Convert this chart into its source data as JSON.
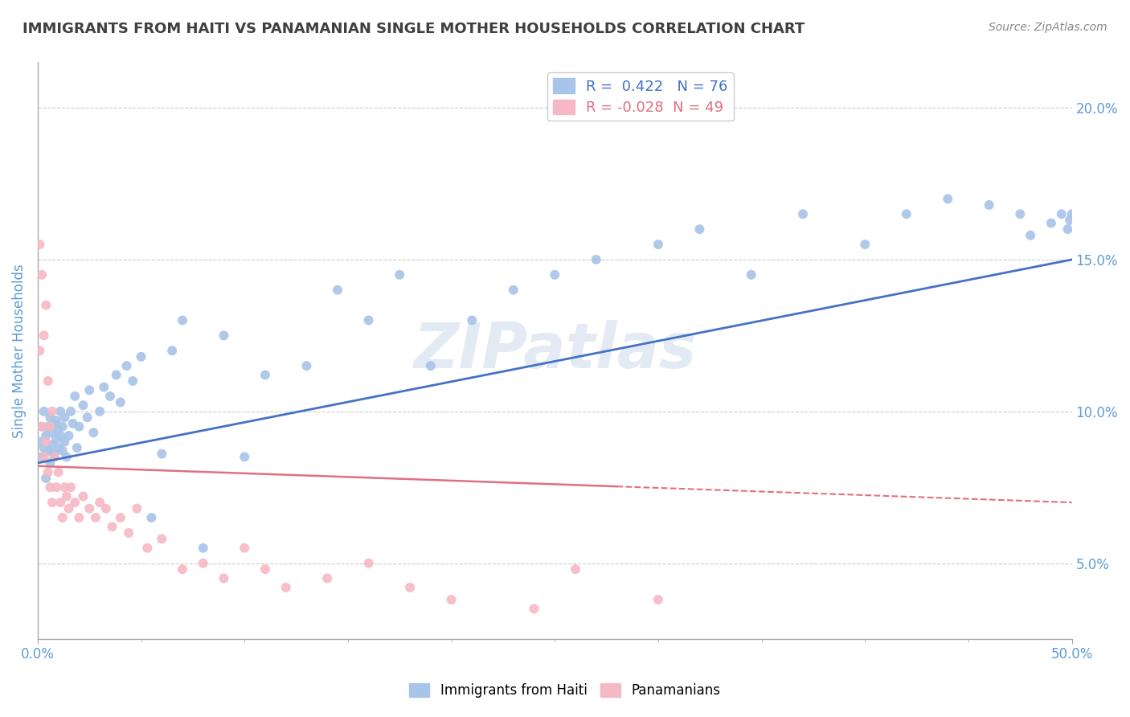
{
  "title": "IMMIGRANTS FROM HAITI VS PANAMANIAN SINGLE MOTHER HOUSEHOLDS CORRELATION CHART",
  "source": "Source: ZipAtlas.com",
  "xlabel_label": "Immigrants from Haiti",
  "xlabel_label2": "Panamanians",
  "ylabel": "Single Mother Households",
  "x_min": 0.0,
  "x_max": 0.5,
  "y_min": 0.025,
  "y_max": 0.215,
  "x_ticks": [
    0.0,
    0.5
  ],
  "x_tick_labels": [
    "0.0%",
    "50.0%"
  ],
  "y_ticks": [
    0.05,
    0.1,
    0.15,
    0.2
  ],
  "y_tick_labels": [
    "5.0%",
    "10.0%",
    "15.0%",
    "20.0%"
  ],
  "haiti_R": 0.422,
  "haiti_N": 76,
  "panama_R": -0.028,
  "panama_N": 49,
  "haiti_color": "#a8c4e8",
  "panama_color": "#f5b8c4",
  "haiti_line_color": "#4472c4",
  "panama_line_color": "#e07080",
  "background_color": "#ffffff",
  "grid_color": "#cccccc",
  "title_color": "#404040",
  "axis_label_color": "#5b9bd5",
  "tick_label_color": "#5b9bd5",
  "haiti_x": [
    0.001,
    0.002,
    0.002,
    0.003,
    0.003,
    0.004,
    0.004,
    0.005,
    0.005,
    0.006,
    0.006,
    0.007,
    0.007,
    0.008,
    0.008,
    0.009,
    0.009,
    0.01,
    0.01,
    0.011,
    0.011,
    0.012,
    0.012,
    0.013,
    0.013,
    0.014,
    0.015,
    0.016,
    0.017,
    0.018,
    0.019,
    0.02,
    0.022,
    0.024,
    0.025,
    0.027,
    0.03,
    0.032,
    0.035,
    0.038,
    0.04,
    0.043,
    0.046,
    0.05,
    0.055,
    0.06,
    0.065,
    0.07,
    0.08,
    0.09,
    0.1,
    0.11,
    0.13,
    0.145,
    0.16,
    0.175,
    0.19,
    0.21,
    0.23,
    0.25,
    0.27,
    0.3,
    0.32,
    0.345,
    0.37,
    0.4,
    0.42,
    0.44,
    0.46,
    0.475,
    0.48,
    0.49,
    0.495,
    0.498,
    0.499,
    0.5
  ],
  "haiti_y": [
    0.09,
    0.095,
    0.085,
    0.1,
    0.088,
    0.092,
    0.078,
    0.087,
    0.095,
    0.083,
    0.098,
    0.089,
    0.093,
    0.096,
    0.086,
    0.091,
    0.097,
    0.094,
    0.088,
    0.092,
    0.1,
    0.087,
    0.095,
    0.09,
    0.098,
    0.085,
    0.092,
    0.1,
    0.096,
    0.105,
    0.088,
    0.095,
    0.102,
    0.098,
    0.107,
    0.093,
    0.1,
    0.108,
    0.105,
    0.112,
    0.103,
    0.115,
    0.11,
    0.118,
    0.065,
    0.086,
    0.12,
    0.13,
    0.055,
    0.125,
    0.085,
    0.112,
    0.115,
    0.14,
    0.13,
    0.145,
    0.115,
    0.13,
    0.14,
    0.145,
    0.15,
    0.155,
    0.16,
    0.145,
    0.165,
    0.155,
    0.165,
    0.17,
    0.168,
    0.165,
    0.158,
    0.162,
    0.165,
    0.16,
    0.163,
    0.165
  ],
  "panama_x": [
    0.001,
    0.001,
    0.002,
    0.002,
    0.003,
    0.003,
    0.004,
    0.004,
    0.005,
    0.005,
    0.006,
    0.006,
    0.007,
    0.007,
    0.008,
    0.009,
    0.01,
    0.011,
    0.012,
    0.013,
    0.014,
    0.015,
    0.016,
    0.018,
    0.02,
    0.022,
    0.025,
    0.028,
    0.03,
    0.033,
    0.036,
    0.04,
    0.044,
    0.048,
    0.053,
    0.06,
    0.07,
    0.08,
    0.09,
    0.1,
    0.11,
    0.12,
    0.14,
    0.16,
    0.18,
    0.2,
    0.24,
    0.26,
    0.3
  ],
  "panama_y": [
    0.155,
    0.12,
    0.095,
    0.145,
    0.085,
    0.125,
    0.09,
    0.135,
    0.08,
    0.11,
    0.075,
    0.095,
    0.07,
    0.1,
    0.085,
    0.075,
    0.08,
    0.07,
    0.065,
    0.075,
    0.072,
    0.068,
    0.075,
    0.07,
    0.065,
    0.072,
    0.068,
    0.065,
    0.07,
    0.068,
    0.062,
    0.065,
    0.06,
    0.068,
    0.055,
    0.058,
    0.048,
    0.05,
    0.045,
    0.055,
    0.048,
    0.042,
    0.045,
    0.05,
    0.042,
    0.038,
    0.035,
    0.048,
    0.038
  ],
  "haiti_line_x0": 0.0,
  "haiti_line_y0": 0.083,
  "haiti_line_x1": 0.5,
  "haiti_line_y1": 0.15,
  "panama_line_x0": 0.0,
  "panama_line_y0": 0.082,
  "panama_line_x1": 0.5,
  "panama_line_y1": 0.07
}
